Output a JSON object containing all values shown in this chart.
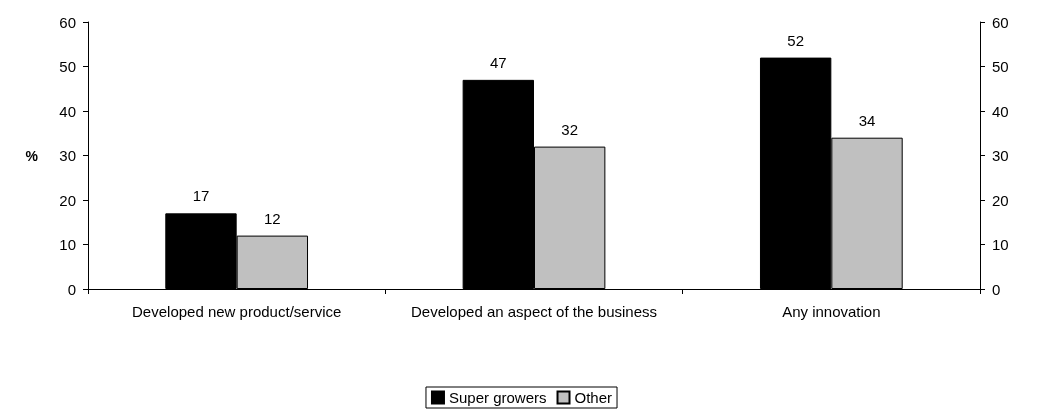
{
  "chart_data": {
    "type": "bar",
    "ylabel": "%",
    "categories": [
      "Developed new product/service",
      "Developed an aspect of the business",
      "Any innovation"
    ],
    "series": [
      {
        "name": "Super growers",
        "color": "#000000",
        "values": [
          17,
          47,
          52
        ]
      },
      {
        "name": "Other",
        "color": "#c0c0c0",
        "values": [
          12,
          32,
          34
        ]
      }
    ],
    "ylim": [
      0,
      60
    ],
    "yticks": [
      0,
      10,
      20,
      30,
      40,
      50,
      60
    ],
    "y2lim": [
      0,
      60
    ],
    "y2ticks": [
      0,
      10,
      20,
      30,
      40,
      50,
      60
    ],
    "data_labels": true,
    "grid": false,
    "legend": "bottom"
  }
}
